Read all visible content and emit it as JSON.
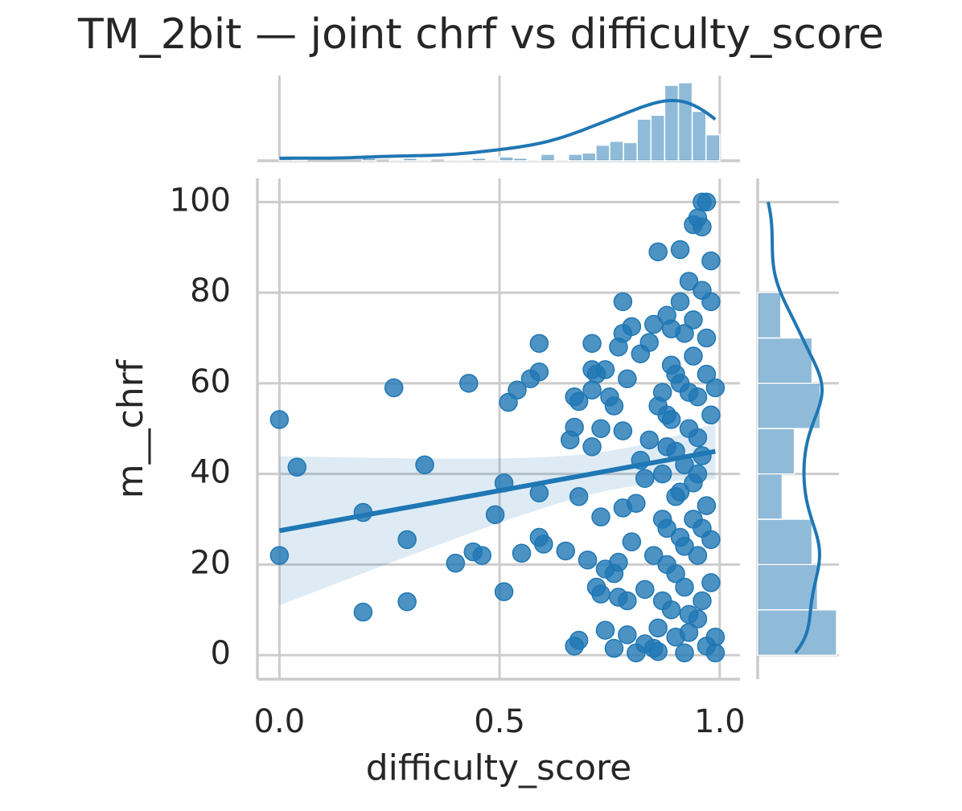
{
  "chart_data": {
    "type": "scatter",
    "title": "TM_2bit — joint chrf vs difficulty_score",
    "xlabel": "difficulty_score",
    "ylabel": "m__chrf",
    "xlim": [
      -0.05,
      1.046
    ],
    "ylim": [
      -5.3,
      105.2
    ],
    "xticks": [
      {
        "value": 0,
        "label": "0.0"
      },
      {
        "value": 0.5,
        "label": "0.5"
      },
      {
        "value": 1,
        "label": "1.0"
      }
    ],
    "yticks": [
      0,
      20,
      40,
      60,
      80,
      100
    ],
    "grid": true,
    "color": "#1f77b4",
    "regression": true,
    "series": [
      {
        "color": "#1f77b4",
        "x": [
          0.0,
          0.0,
          0.04,
          0.19,
          0.19,
          0.26,
          0.29,
          0.29,
          0.33,
          0.4,
          0.43,
          0.44,
          0.46,
          0.49,
          0.51,
          0.51,
          0.52,
          0.54,
          0.55,
          0.57,
          0.59,
          0.59,
          0.59,
          0.59,
          0.6,
          0.65,
          0.66,
          0.67,
          0.67,
          0.67,
          0.68,
          0.68,
          0.68,
          0.7,
          0.71,
          0.71,
          0.71,
          0.71,
          0.72,
          0.72,
          0.73,
          0.73,
          0.73,
          0.74,
          0.74,
          0.74,
          0.75,
          0.76,
          0.76,
          0.76,
          0.77,
          0.77,
          0.77,
          0.78,
          0.78,
          0.78,
          0.78,
          0.79,
          0.79,
          0.79,
          0.8,
          0.8,
          0.81,
          0.81,
          0.82,
          0.82,
          0.83,
          0.83,
          0.83,
          0.84,
          0.84,
          0.85,
          0.85,
          0.86,
          0.86,
          0.86,
          0.87,
          0.87,
          0.87,
          0.88,
          0.88,
          0.88,
          0.89,
          0.89,
          0.9,
          0.9,
          0.91,
          0.91,
          0.91,
          0.91,
          0.92,
          0.92,
          0.92,
          0.93,
          0.93,
          0.93,
          0.94,
          0.94,
          0.94,
          0.95,
          0.95,
          0.95,
          0.95,
          0.96,
          0.96,
          0.96,
          0.96,
          0.97,
          0.97,
          0.97,
          0.97,
          0.98,
          0.98,
          0.98,
          0.98,
          0.98,
          0.99,
          0.99,
          0.99,
          0.96,
          0.88,
          0.9,
          0.92,
          0.86,
          0.94,
          0.89,
          0.93,
          0.95,
          0.9,
          0.87,
          0.91,
          0.97,
          0.85,
          0.93,
          0.96,
          0.9,
          0.94,
          0.88,
          0.92,
          0.95,
          0.89
        ],
        "y": [
          52,
          22,
          41.5,
          31.5,
          9.5,
          59,
          25.5,
          11.8,
          42,
          20.3,
          60,
          22.8,
          22,
          31,
          14,
          38,
          55.8,
          58.5,
          22.5,
          61,
          62.5,
          68.8,
          35.8,
          26,
          24.5,
          23,
          47.5,
          2,
          57,
          50.3,
          3.3,
          56,
          35,
          21,
          58.5,
          63,
          46,
          68.8,
          15,
          62,
          50,
          13.5,
          30.5,
          19,
          5.5,
          63,
          57,
          55,
          18,
          1.5,
          20.5,
          12.8,
          68,
          78,
          49.5,
          71,
          32.5,
          4.5,
          12,
          61,
          72.5,
          25,
          33.5,
          0.5,
          43,
          66.5,
          39,
          14.5,
          2.5,
          47.5,
          69,
          1.5,
          73,
          89,
          0.8,
          6,
          30,
          58,
          40,
          75,
          53,
          20,
          10,
          64,
          35,
          45,
          89.5,
          26,
          78,
          60,
          15,
          0.5,
          71,
          82.5,
          50,
          5,
          95,
          38,
          66,
          96.5,
          22,
          8,
          57,
          100,
          80.5,
          44,
          12,
          100,
          33,
          62,
          2,
          87,
          78,
          53,
          16,
          25.5,
          59,
          4,
          0.5,
          94.5,
          28,
          18,
          42,
          55,
          30,
          72,
          9,
          48,
          62,
          12,
          36,
          70,
          22,
          58,
          28,
          4,
          74,
          46,
          24,
          40,
          52
        ]
      }
    ],
    "x_hist": {
      "bins": [
        0,
        0.03125,
        0.0625,
        0.09375,
        0.125,
        0.15625,
        0.1875,
        0.21875,
        0.25,
        0.28125,
        0.3125,
        0.34375,
        0.375,
        0.40625,
        0.4375,
        0.46875,
        0.5,
        0.53125,
        0.5625,
        0.59375,
        0.625,
        0.65625,
        0.6875,
        0.71875,
        0.75,
        0.78125,
        0.8125,
        0.84375,
        0.875,
        0.90625,
        0.9375,
        0.96875,
        1.0
      ],
      "counts": [
        2,
        1,
        0,
        0,
        0,
        0,
        2,
        0,
        1,
        2,
        1,
        0,
        1,
        1,
        2,
        1,
        3,
        2,
        1,
        5,
        1,
        5,
        6,
        12,
        15,
        14,
        32,
        35,
        58,
        60,
        38,
        20
      ]
    },
    "y_hist": {
      "bins": [
        0,
        10,
        20,
        30,
        40,
        50,
        60,
        70,
        80
      ],
      "counts": [
        58,
        44,
        40,
        18,
        27,
        46,
        40,
        17
      ]
    }
  }
}
